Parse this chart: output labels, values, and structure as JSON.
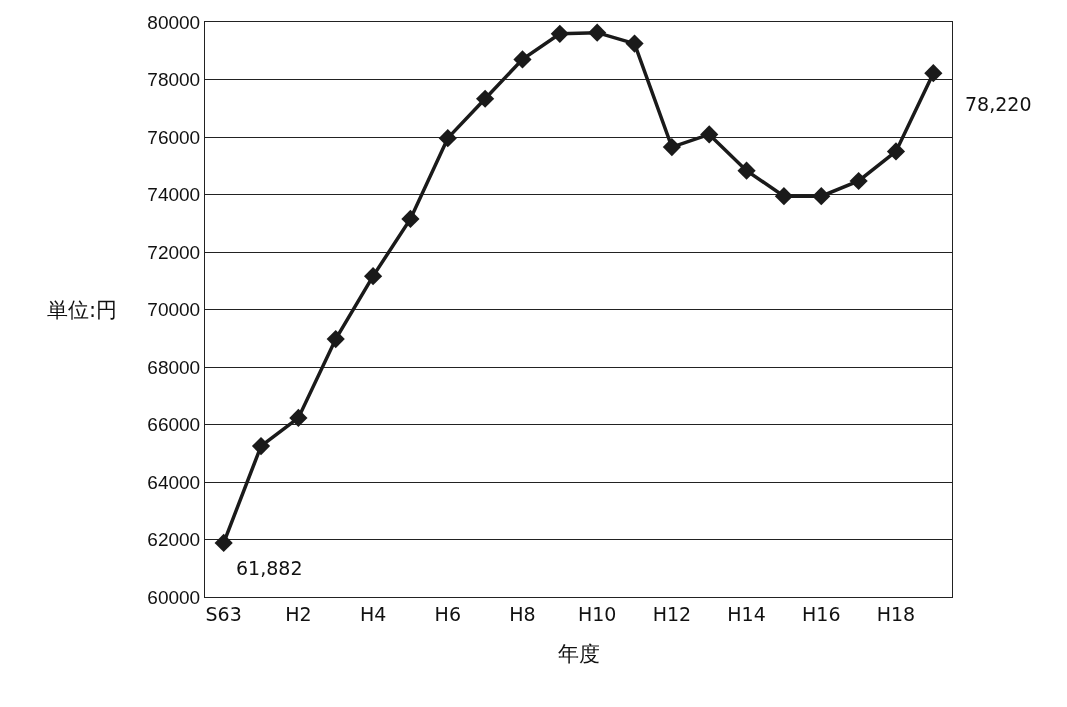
{
  "chart_data": {
    "type": "line",
    "xlabel": "年度",
    "ylabel": "単位:円",
    "categories": [
      "S63",
      null,
      "H2",
      null,
      "H4",
      null,
      "H6",
      null,
      "H8",
      null,
      "H10",
      null,
      "H12",
      null,
      "H14",
      null,
      "H16",
      null,
      "H18",
      null
    ],
    "series": [
      {
        "color": "#1a1a1a",
        "values": [
          61882,
          65250,
          66230,
          68970,
          71160,
          73150,
          75960,
          77330,
          78700,
          79590,
          79630,
          79250,
          75650,
          76090,
          74830,
          73940,
          73940,
          74470,
          75500,
          78220
        ],
        "value_labels": [
          "61,882",
          null,
          null,
          null,
          null,
          null,
          null,
          null,
          null,
          null,
          null,
          null,
          null,
          null,
          null,
          null,
          null,
          null,
          null,
          "78,220"
        ]
      }
    ],
    "ylim": [
      60000,
      80000
    ],
    "yticks": [
      60000,
      62000,
      64000,
      66000,
      68000,
      70000,
      72000,
      74000,
      76000,
      78000,
      80000
    ],
    "grid": "y",
    "marker": "diamond",
    "line_style": "solid"
  }
}
